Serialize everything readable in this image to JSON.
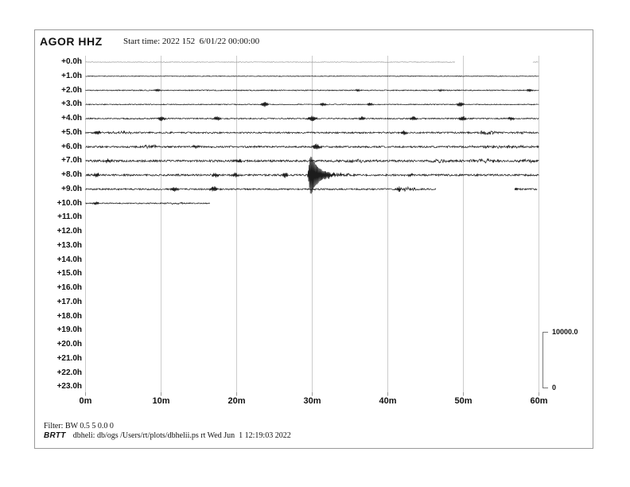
{
  "header": {
    "station": "AGOR HHZ",
    "start_time": "Start time: 2022 152  6/01/22 00:00:00"
  },
  "scale_bar": {
    "max_label": "10000.0",
    "min_label": "0"
  },
  "footer": {
    "filter": "Filter: BW 0.5 5 0.0 0",
    "brand": "BRTT",
    "info": "dbheli: db/ogs /Users/rt/plots/dbhelii.ps rt Wed Jun  1 12:19:03 2022"
  },
  "colors": {
    "trace": "#1c1c1c",
    "trace_faint": "#8f8f8f",
    "grid": "#cccccc",
    "tick": "#9a9a9a",
    "bracket": "#777777",
    "frame": "#9a9a9a"
  },
  "chart_data": {
    "type": "line",
    "subtype": "helicorder",
    "title": "AGOR HHZ",
    "start_time": "2022 152  6/01/22 00:00:00",
    "x_ticks": [
      "0m",
      "10m",
      "20m",
      "30m",
      "40m",
      "50m",
      "60m"
    ],
    "x_tick_minutes": [
      0,
      10,
      20,
      30,
      40,
      50,
      60
    ],
    "x_range_minutes": [
      0,
      60
    ],
    "row_spacing_hours": 1.0,
    "amplitude_scale": {
      "max": 10000.0,
      "min": 0
    },
    "trace_color": "#1c1c1c",
    "grid": true,
    "legend": false,
    "rows": [
      {
        "label": "+0.0h",
        "amp": 0.35,
        "color": "#8f8f8f",
        "stroke": 0.6,
        "segments": [
          [
            0,
            48.9
          ],
          [
            59.2,
            59.9
          ]
        ],
        "events": []
      },
      {
        "label": "+1.0h",
        "amp": 0.45,
        "segments": [
          [
            0,
            60
          ]
        ],
        "events": []
      },
      {
        "label": "+2.0h",
        "amp": 0.6,
        "segments": [
          [
            0,
            60
          ]
        ],
        "events": [
          {
            "m": 9.5,
            "a": 1.6,
            "w": 0.35,
            "t": "spike"
          },
          {
            "m": 36,
            "a": 1.2,
            "w": 0.3,
            "t": "spike"
          },
          {
            "m": 47,
            "a": 1.3,
            "w": 0.3,
            "t": "spike"
          },
          {
            "m": 58.8,
            "a": 1.5,
            "w": 0.35,
            "t": "spike"
          }
        ]
      },
      {
        "label": "+3.0h",
        "amp": 0.55,
        "segments": [
          [
            0,
            60
          ]
        ],
        "events": [
          {
            "m": 23.7,
            "a": 2.8,
            "w": 0.4,
            "t": "spike"
          },
          {
            "m": 31.4,
            "a": 1.8,
            "w": 0.35,
            "t": "spike"
          },
          {
            "m": 37.6,
            "a": 1.8,
            "w": 0.35,
            "t": "spike"
          },
          {
            "m": 49.6,
            "a": 2.6,
            "w": 0.4,
            "t": "spike"
          }
        ]
      },
      {
        "label": "+4.0h",
        "amp": 0.75,
        "segments": [
          [
            0,
            60
          ]
        ],
        "events": [
          {
            "m": 10,
            "a": 2.6,
            "w": 0.4,
            "t": "spike"
          },
          {
            "m": 17.4,
            "a": 2.4,
            "w": 0.4,
            "t": "spike"
          },
          {
            "m": 30,
            "a": 3,
            "w": 0.45,
            "t": "spike"
          },
          {
            "m": 36.6,
            "a": 2.2,
            "w": 0.35,
            "t": "spike"
          },
          {
            "m": 43.4,
            "a": 2.2,
            "w": 0.35,
            "t": "spike"
          },
          {
            "m": 49.9,
            "a": 2.6,
            "w": 0.4,
            "t": "spike"
          },
          {
            "m": 56.3,
            "a": 2,
            "w": 0.35,
            "t": "spike"
          }
        ]
      },
      {
        "label": "+5.0h",
        "amp": 0.95,
        "segments": [
          [
            0,
            60
          ]
        ],
        "events": [
          {
            "m": 1.6,
            "a": 2.2,
            "w": 0.4,
            "t": "spike"
          },
          {
            "m": 5,
            "a": 1.3,
            "w": 1.5,
            "t": "burst"
          },
          {
            "m": 42.1,
            "a": 2.6,
            "w": 0.4,
            "t": "spike"
          },
          {
            "m": 53.2,
            "a": 2.8,
            "w": 1.2,
            "t": "burst"
          },
          {
            "m": 57.5,
            "a": 1.4,
            "w": 1,
            "t": "burst"
          }
        ]
      },
      {
        "label": "+6.0h",
        "amp": 1.05,
        "segments": [
          [
            0,
            60
          ]
        ],
        "events": [
          {
            "m": 8.6,
            "a": 2.2,
            "w": 1,
            "t": "burst"
          },
          {
            "m": 14.6,
            "a": 1.8,
            "w": 0.35,
            "t": "spike"
          },
          {
            "m": 30.6,
            "a": 3.2,
            "w": 0.45,
            "t": "spike"
          },
          {
            "m": 55,
            "a": 1.3,
            "w": 5,
            "t": "burst"
          }
        ]
      },
      {
        "label": "+7.0h",
        "amp": 1.25,
        "segments": [
          [
            0,
            60
          ]
        ],
        "events": [
          {
            "m": 3,
            "a": 2.2,
            "w": 0.4,
            "t": "spike"
          },
          {
            "m": 20.3,
            "a": 1.8,
            "w": 0.35,
            "t": "spike"
          },
          {
            "m": 35.5,
            "a": 1.6,
            "w": 2,
            "t": "burst"
          },
          {
            "m": 47,
            "a": 1.6,
            "w": 1.5,
            "t": "burst"
          },
          {
            "m": 52.5,
            "a": 1.8,
            "w": 2.5,
            "t": "burst"
          },
          {
            "m": 58.5,
            "a": 1.8,
            "w": 1.2,
            "t": "burst"
          }
        ]
      },
      {
        "label": "+8.0h",
        "amp": 1.15,
        "segments": [
          [
            0,
            60
          ]
        ],
        "events": [
          {
            "m": 1.5,
            "a": 2.6,
            "w": 0.4,
            "t": "spike"
          },
          {
            "m": 17.2,
            "a": 2.6,
            "w": 0.4,
            "t": "spike"
          },
          {
            "m": 19.8,
            "a": 2.2,
            "w": 0.35,
            "t": "spike"
          },
          {
            "m": 26.4,
            "a": 2.6,
            "w": 0.4,
            "t": "spike"
          },
          {
            "m": 29.8,
            "a": 24,
            "w": 0.25,
            "t": "event"
          },
          {
            "m": 33.5,
            "a": 1.8,
            "w": 1.5,
            "t": "burst"
          },
          {
            "m": 43,
            "a": 1.6,
            "w": 0.35,
            "t": "spike"
          }
        ]
      },
      {
        "label": "+9.0h",
        "amp": 0.95,
        "segments": [
          [
            0,
            46.4
          ],
          [
            56.8,
            59.8
          ]
        ],
        "events": [
          {
            "m": 11.8,
            "a": 2.2,
            "w": 0.4,
            "t": "spike"
          },
          {
            "m": 17,
            "a": 2.8,
            "w": 0.45,
            "t": "spike"
          },
          {
            "m": 41.5,
            "a": 2,
            "w": 0.35,
            "t": "spike"
          },
          {
            "m": 42.5,
            "a": 2.2,
            "w": 1,
            "t": "burst"
          },
          {
            "m": 56.9,
            "a": 1.8,
            "w": 0.35,
            "t": "spike"
          }
        ]
      },
      {
        "label": "+10.0h",
        "amp": 0.65,
        "segments": [
          [
            0,
            16.5
          ]
        ],
        "events": [
          {
            "m": 1.4,
            "a": 1.8,
            "w": 0.35,
            "t": "spike"
          },
          {
            "m": 12,
            "a": 1,
            "w": 1.5,
            "t": "burst"
          }
        ]
      },
      {
        "label": "+11.0h",
        "amp": 0,
        "segments": [],
        "events": []
      },
      {
        "label": "+12.0h",
        "amp": 0,
        "segments": [],
        "events": []
      },
      {
        "label": "+13.0h",
        "amp": 0,
        "segments": [],
        "events": []
      },
      {
        "label": "+14.0h",
        "amp": 0,
        "segments": [],
        "events": []
      },
      {
        "label": "+15.0h",
        "amp": 0,
        "segments": [],
        "events": []
      },
      {
        "label": "+16.0h",
        "amp": 0,
        "segments": [],
        "events": []
      },
      {
        "label": "+17.0h",
        "amp": 0,
        "segments": [],
        "events": []
      },
      {
        "label": "+18.0h",
        "amp": 0,
        "segments": [],
        "events": []
      },
      {
        "label": "+19.0h",
        "amp": 0,
        "segments": [],
        "events": []
      },
      {
        "label": "+20.0h",
        "amp": 0,
        "segments": [],
        "events": []
      },
      {
        "label": "+21.0h",
        "amp": 0,
        "segments": [],
        "events": []
      },
      {
        "label": "+22.0h",
        "amp": 0,
        "segments": [],
        "events": []
      },
      {
        "label": "+23.0h",
        "amp": 0,
        "segments": [],
        "events": []
      }
    ]
  }
}
